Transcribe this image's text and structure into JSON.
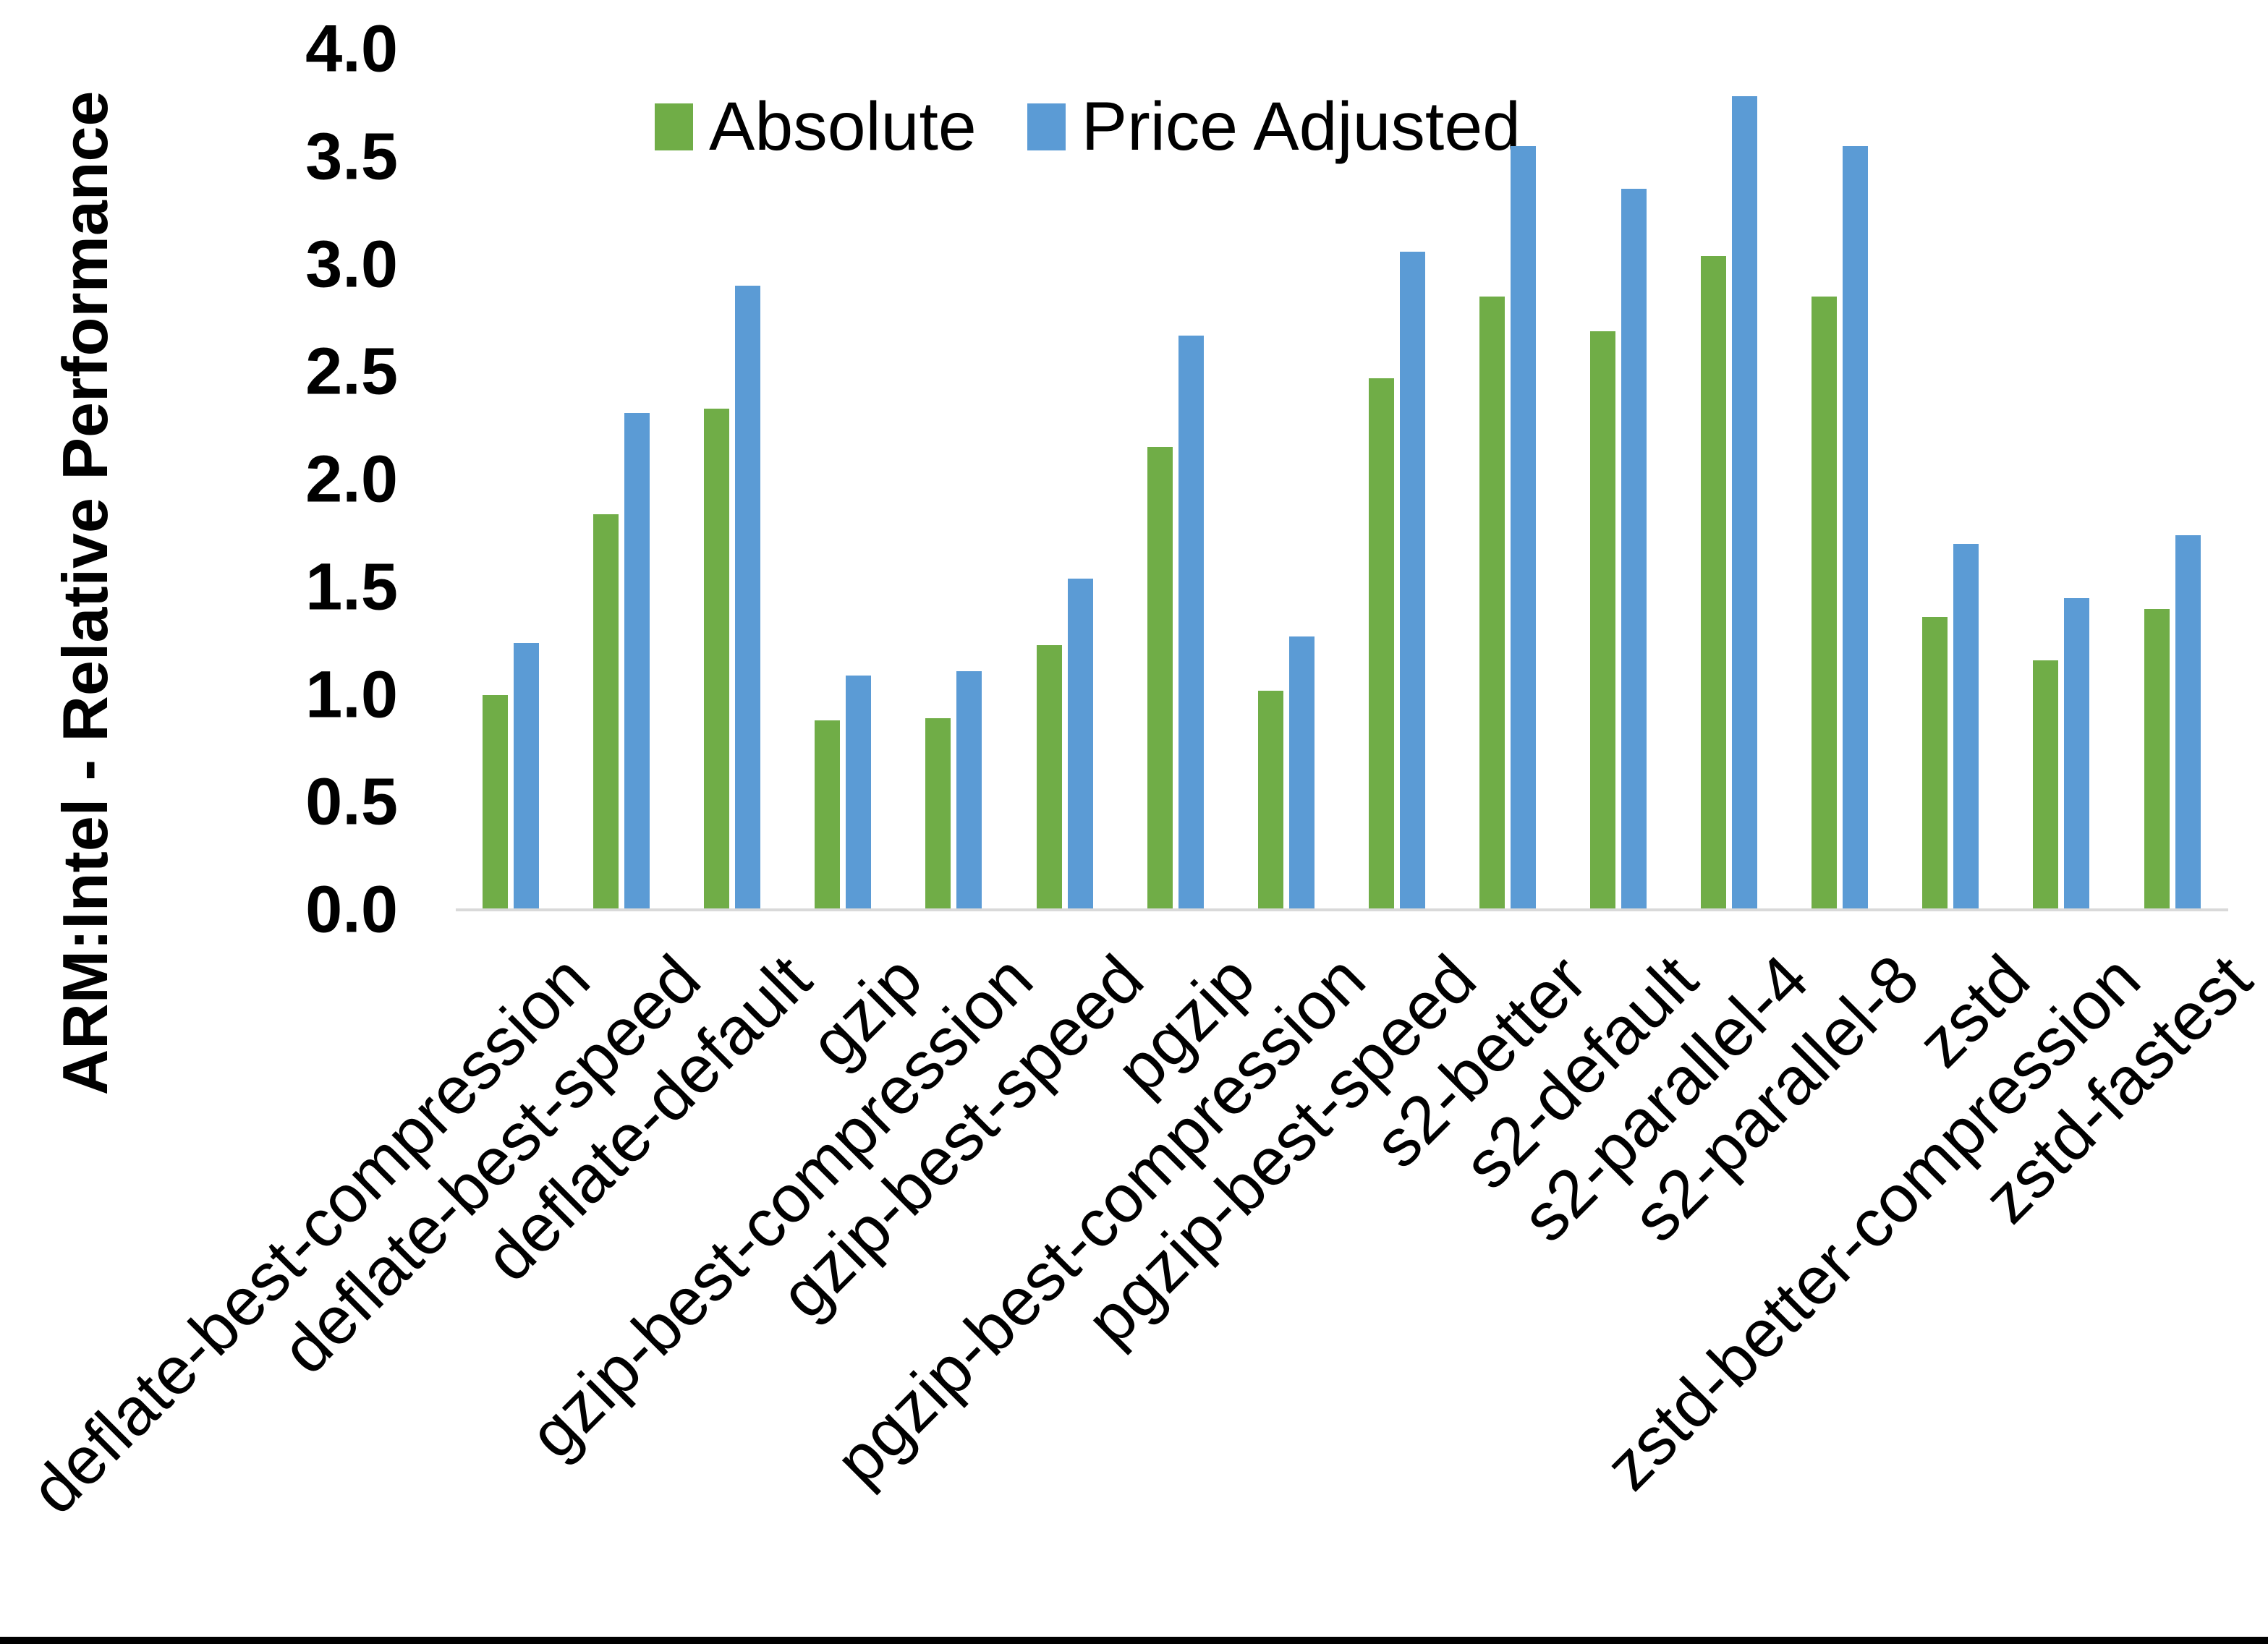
{
  "page": {
    "background": "#FFFFFF",
    "bottom_border_color": "#000000"
  },
  "chart_data": {
    "type": "bar",
    "title": "",
    "xlabel": "",
    "ylabel": "ARM:Intel - Relative Performance",
    "categories": [
      "deflate-best-compression",
      "deflate-best-speed",
      "deflate-default",
      "gzip",
      "gzip-best-compression",
      "gzip-best-speed",
      "pgzip",
      "pgzip-best-compression",
      "pgzip-best-speed",
      "s2-better",
      "s2-default",
      "s2-parallel-4",
      "s2-parallel-8",
      "zstd",
      "zstd-better-compression",
      "zstd-fastest"
    ],
    "series": [
      {
        "name": "Absolute",
        "color": "#70AD47",
        "values": [
          1.0,
          1.84,
          2.33,
          0.88,
          0.89,
          1.23,
          2.15,
          1.02,
          2.47,
          2.85,
          2.69,
          3.04,
          2.85,
          1.36,
          1.16,
          1.4
        ]
      },
      {
        "name": "Price Adjusted",
        "color": "#5B9BD5",
        "values": [
          1.24,
          2.31,
          2.9,
          1.09,
          1.11,
          1.54,
          2.67,
          1.27,
          3.06,
          3.55,
          3.35,
          3.78,
          3.55,
          1.7,
          1.45,
          1.74
        ]
      }
    ],
    "ylim": [
      0.0,
      4.0
    ],
    "ytick_step": 0.5,
    "ytick_labels": [
      "0.0",
      "0.5",
      "1.0",
      "1.5",
      "2.0",
      "2.5",
      "3.0",
      "3.5",
      "4.0"
    ],
    "grid": false,
    "legend_position": "top-center",
    "axis_line_color": "#D9D9D9",
    "text_color": "#000000",
    "x_label_rotation_deg": -45
  }
}
